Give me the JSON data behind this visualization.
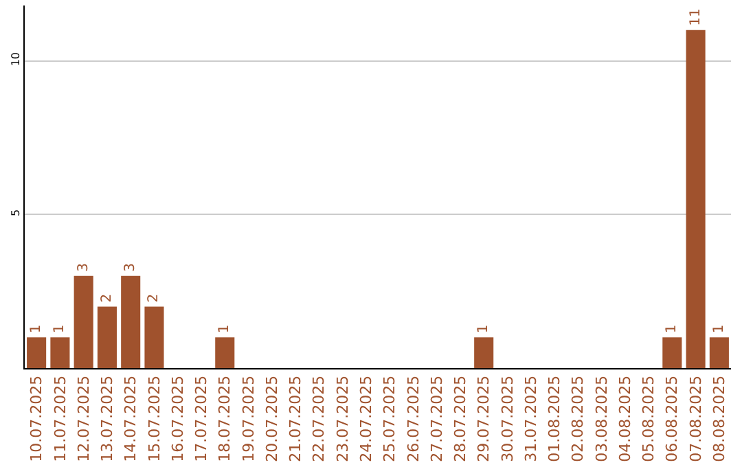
{
  "chart_data": {
    "type": "bar",
    "categories": [
      "10.07.2025",
      "11.07.2025",
      "12.07.2025",
      "13.07.2025",
      "14.07.2025",
      "15.07.2025",
      "16.07.2025",
      "17.07.2025",
      "18.07.2025",
      "19.07.2025",
      "20.07.2025",
      "21.07.2025",
      "22.07.2025",
      "23.07.2025",
      "24.07.2025",
      "25.07.2025",
      "26.07.2025",
      "27.07.2025",
      "28.07.2025",
      "29.07.2025",
      "30.07.2025",
      "31.07.2025",
      "01.08.2025",
      "02.08.2025",
      "03.08.2025",
      "04.08.2025",
      "05.08.2025",
      "06.08.2025",
      "07.08.2025",
      "08.08.2025"
    ],
    "values": [
      1,
      1,
      3,
      2,
      3,
      2,
      0,
      0,
      1,
      0,
      0,
      0,
      0,
      0,
      0,
      0,
      0,
      0,
      0,
      1,
      0,
      0,
      0,
      0,
      0,
      0,
      0,
      1,
      11,
      1
    ],
    "value_labels": [
      "1",
      "1",
      "3",
      "2",
      "3",
      "2",
      null,
      null,
      "1",
      null,
      null,
      null,
      null,
      null,
      null,
      null,
      null,
      null,
      null,
      "1",
      null,
      null,
      null,
      null,
      null,
      null,
      null,
      "1",
      "11",
      "1"
    ],
    "color": "#a0522d",
    "ylim": [
      0,
      11.8
    ],
    "yticks": [
      5,
      10
    ],
    "grid": "y",
    "legend": false
  }
}
